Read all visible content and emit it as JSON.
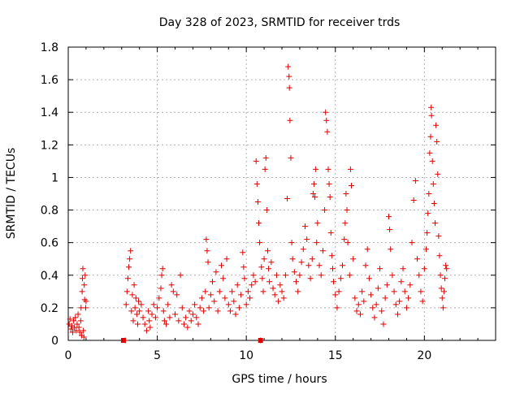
{
  "chart_data": {
    "type": "scatter",
    "title": "Day 328 of 2023, SRMTID for receiver trds",
    "xlabel": "GPS time / hours",
    "ylabel": "SRMTID / TECUs",
    "xlim": [
      0,
      24
    ],
    "ylim": [
      0,
      1.8
    ],
    "xticks": [
      0,
      5,
      10,
      15,
      20
    ],
    "yticks": [
      0,
      0.2,
      0.4,
      0.6,
      0.8,
      1,
      1.2,
      1.4,
      1.6,
      1.8
    ],
    "ytick_labels": [
      "0",
      "0.2",
      "0.4",
      "0.6",
      "0.8",
      "1",
      "1.2",
      "1.4",
      "1.6",
      "1.8"
    ],
    "grid": true,
    "marker": "plus",
    "color": "#e00000",
    "series": [
      {
        "name": "SRMTID",
        "points": [
          [
            0.05,
            0.1
          ],
          [
            0.1,
            0.13
          ],
          [
            0.15,
            0.07
          ],
          [
            0.2,
            0.09
          ],
          [
            0.25,
            0.05
          ],
          [
            0.3,
            0.12
          ],
          [
            0.35,
            0.08
          ],
          [
            0.4,
            0.14
          ],
          [
            0.45,
            0.06
          ],
          [
            0.5,
            0.1
          ],
          [
            0.55,
            0.16
          ],
          [
            0.6,
            0.08
          ],
          [
            0.65,
            0.05
          ],
          [
            0.7,
            0.12
          ],
          [
            0.72,
            0.2
          ],
          [
            0.75,
            0.03
          ],
          [
            0.78,
            0.3
          ],
          [
            0.8,
            0.38
          ],
          [
            0.82,
            0.44
          ],
          [
            0.85,
            0.06
          ],
          [
            0.88,
            0.02
          ],
          [
            0.9,
            0.34
          ],
          [
            0.92,
            0.25
          ],
          [
            0.95,
            0.4
          ],
          [
            0.98,
            0.2
          ],
          [
            1.0,
            0.24
          ],
          [
            3.2,
            0.0
          ],
          [
            3.25,
            0.22
          ],
          [
            3.3,
            0.3
          ],
          [
            3.35,
            0.38
          ],
          [
            3.4,
            0.45
          ],
          [
            3.45,
            0.5
          ],
          [
            3.5,
            0.55
          ],
          [
            3.55,
            0.18
          ],
          [
            3.6,
            0.28
          ],
          [
            3.65,
            0.12
          ],
          [
            3.7,
            0.34
          ],
          [
            3.75,
            0.2
          ],
          [
            3.8,
            0.26
          ],
          [
            3.85,
            0.16
          ],
          [
            3.9,
            0.1
          ],
          [
            3.95,
            0.24
          ],
          [
            4.0,
            0.18
          ],
          [
            4.1,
            0.22
          ],
          [
            4.2,
            0.14
          ],
          [
            4.3,
            0.1
          ],
          [
            4.4,
            0.06
          ],
          [
            4.5,
            0.18
          ],
          [
            4.55,
            0.12
          ],
          [
            4.6,
            0.08
          ],
          [
            4.7,
            0.16
          ],
          [
            4.8,
            0.22
          ],
          [
            4.9,
            0.14
          ],
          [
            5.0,
            0.2
          ],
          [
            5.1,
            0.26
          ],
          [
            5.2,
            0.32
          ],
          [
            5.25,
            0.4
          ],
          [
            5.3,
            0.44
          ],
          [
            5.35,
            0.18
          ],
          [
            5.4,
            0.12
          ],
          [
            5.5,
            0.1
          ],
          [
            5.6,
            0.22
          ],
          [
            5.7,
            0.14
          ],
          [
            5.8,
            0.34
          ],
          [
            5.9,
            0.3
          ],
          [
            6.0,
            0.16
          ],
          [
            6.1,
            0.28
          ],
          [
            6.2,
            0.12
          ],
          [
            6.3,
            0.4
          ],
          [
            6.4,
            0.2
          ],
          [
            6.5,
            0.1
          ],
          [
            6.6,
            0.14
          ],
          [
            6.7,
            0.08
          ],
          [
            6.8,
            0.18
          ],
          [
            6.9,
            0.12
          ],
          [
            7.0,
            0.16
          ],
          [
            7.1,
            0.22
          ],
          [
            7.2,
            0.14
          ],
          [
            7.3,
            0.1
          ],
          [
            7.4,
            0.2
          ],
          [
            7.5,
            0.26
          ],
          [
            7.6,
            0.18
          ],
          [
            7.7,
            0.3
          ],
          [
            7.75,
            0.62
          ],
          [
            7.8,
            0.55
          ],
          [
            7.85,
            0.48
          ],
          [
            7.9,
            0.2
          ],
          [
            8.0,
            0.28
          ],
          [
            8.1,
            0.36
          ],
          [
            8.2,
            0.24
          ],
          [
            8.3,
            0.42
          ],
          [
            8.4,
            0.18
          ],
          [
            8.5,
            0.3
          ],
          [
            8.6,
            0.46
          ],
          [
            8.7,
            0.38
          ],
          [
            8.8,
            0.26
          ],
          [
            8.9,
            0.5
          ],
          [
            9.0,
            0.22
          ],
          [
            9.1,
            0.18
          ],
          [
            9.2,
            0.3
          ],
          [
            9.3,
            0.24
          ],
          [
            9.4,
            0.16
          ],
          [
            9.5,
            0.34
          ],
          [
            9.6,
            0.2
          ],
          [
            9.7,
            0.28
          ],
          [
            9.8,
            0.54
          ],
          [
            9.85,
            0.45
          ],
          [
            9.9,
            0.38
          ],
          [
            10.0,
            0.22
          ],
          [
            10.1,
            0.3
          ],
          [
            10.2,
            0.26
          ],
          [
            10.3,
            0.34
          ],
          [
            10.4,
            0.4
          ],
          [
            10.5,
            0.36
          ],
          [
            10.55,
            1.1
          ],
          [
            10.6,
            0.96
          ],
          [
            10.65,
            0.85
          ],
          [
            10.7,
            0.72
          ],
          [
            10.75,
            0.6
          ],
          [
            10.8,
            0.0
          ],
          [
            10.85,
            0.45
          ],
          [
            10.9,
            0.38
          ],
          [
            10.95,
            0.3
          ],
          [
            11.0,
            0.5
          ],
          [
            11.05,
            1.05
          ],
          [
            11.1,
            1.12
          ],
          [
            11.15,
            0.8
          ],
          [
            11.2,
            0.55
          ],
          [
            11.25,
            0.44
          ],
          [
            11.3,
            0.36
          ],
          [
            11.4,
            0.48
          ],
          [
            11.5,
            0.32
          ],
          [
            11.6,
            0.28
          ],
          [
            11.7,
            0.4
          ],
          [
            11.8,
            0.24
          ],
          [
            11.9,
            0.34
          ],
          [
            12.0,
            0.3
          ],
          [
            12.1,
            0.26
          ],
          [
            12.2,
            0.4
          ],
          [
            12.3,
            0.87
          ],
          [
            12.35,
            1.68
          ],
          [
            12.4,
            1.62
          ],
          [
            12.42,
            1.55
          ],
          [
            12.45,
            1.35
          ],
          [
            12.5,
            1.12
          ],
          [
            12.55,
            0.6
          ],
          [
            12.6,
            0.5
          ],
          [
            12.7,
            0.42
          ],
          [
            12.8,
            0.36
          ],
          [
            12.9,
            0.3
          ],
          [
            13.0,
            0.4
          ],
          [
            13.1,
            0.48
          ],
          [
            13.2,
            0.56
          ],
          [
            13.3,
            0.7
          ],
          [
            13.4,
            0.62
          ],
          [
            13.5,
            0.46
          ],
          [
            13.6,
            0.38
          ],
          [
            13.7,
            0.5
          ],
          [
            13.75,
            0.9
          ],
          [
            13.8,
            0.96
          ],
          [
            13.85,
            0.88
          ],
          [
            13.9,
            1.05
          ],
          [
            13.95,
            0.6
          ],
          [
            14.0,
            0.72
          ],
          [
            14.1,
            0.46
          ],
          [
            14.2,
            0.4
          ],
          [
            14.3,
            0.55
          ],
          [
            14.4,
            0.8
          ],
          [
            14.45,
            1.4
          ],
          [
            14.5,
            1.35
          ],
          [
            14.55,
            1.28
          ],
          [
            14.6,
            1.05
          ],
          [
            14.65,
            0.96
          ],
          [
            14.7,
            0.88
          ],
          [
            14.75,
            0.66
          ],
          [
            14.8,
            0.52
          ],
          [
            14.85,
            0.44
          ],
          [
            14.9,
            0.36
          ],
          [
            15.0,
            0.28
          ],
          [
            15.1,
            0.2
          ],
          [
            15.2,
            0.3
          ],
          [
            15.3,
            0.38
          ],
          [
            15.4,
            0.46
          ],
          [
            15.5,
            0.62
          ],
          [
            15.55,
            0.72
          ],
          [
            15.6,
            0.9
          ],
          [
            15.65,
            0.8
          ],
          [
            15.7,
            0.6
          ],
          [
            15.8,
            0.4
          ],
          [
            15.85,
            1.05
          ],
          [
            15.9,
            0.95
          ],
          [
            16.0,
            0.5
          ],
          [
            16.1,
            0.26
          ],
          [
            16.2,
            0.18
          ],
          [
            16.3,
            0.22
          ],
          [
            16.4,
            0.16
          ],
          [
            16.5,
            0.3
          ],
          [
            16.6,
            0.24
          ],
          [
            16.7,
            0.46
          ],
          [
            16.8,
            0.56
          ],
          [
            16.9,
            0.38
          ],
          [
            17.0,
            0.28
          ],
          [
            17.1,
            0.2
          ],
          [
            17.2,
            0.14
          ],
          [
            17.3,
            0.22
          ],
          [
            17.4,
            0.32
          ],
          [
            17.5,
            0.44
          ],
          [
            17.6,
            0.18
          ],
          [
            17.7,
            0.1
          ],
          [
            17.8,
            0.26
          ],
          [
            17.9,
            0.34
          ],
          [
            18.0,
            0.76
          ],
          [
            18.05,
            0.68
          ],
          [
            18.1,
            0.56
          ],
          [
            18.2,
            0.4
          ],
          [
            18.3,
            0.3
          ],
          [
            18.4,
            0.22
          ],
          [
            18.5,
            0.16
          ],
          [
            18.6,
            0.24
          ],
          [
            18.7,
            0.36
          ],
          [
            18.8,
            0.44
          ],
          [
            18.9,
            0.3
          ],
          [
            19.0,
            0.2
          ],
          [
            19.1,
            0.26
          ],
          [
            19.2,
            0.34
          ],
          [
            19.3,
            0.6
          ],
          [
            19.4,
            0.86
          ],
          [
            19.5,
            0.98
          ],
          [
            19.6,
            0.5
          ],
          [
            19.7,
            0.4
          ],
          [
            19.8,
            0.3
          ],
          [
            19.9,
            0.24
          ],
          [
            20.0,
            0.44
          ],
          [
            20.1,
            0.56
          ],
          [
            20.15,
            0.66
          ],
          [
            20.2,
            0.78
          ],
          [
            20.25,
            0.9
          ],
          [
            20.3,
            1.15
          ],
          [
            20.35,
            1.25
          ],
          [
            20.38,
            1.43
          ],
          [
            20.4,
            1.38
          ],
          [
            20.45,
            1.1
          ],
          [
            20.5,
            0.96
          ],
          [
            20.55,
            0.84
          ],
          [
            20.6,
            0.72
          ],
          [
            20.65,
            1.32
          ],
          [
            20.7,
            1.22
          ],
          [
            20.75,
            1.02
          ],
          [
            20.8,
            0.64
          ],
          [
            20.85,
            0.52
          ],
          [
            20.9,
            0.4
          ],
          [
            20.95,
            0.32
          ],
          [
            21.0,
            0.26
          ],
          [
            21.05,
            0.2
          ],
          [
            21.1,
            0.3
          ],
          [
            21.15,
            0.38
          ],
          [
            21.2,
            0.46
          ],
          [
            21.25,
            0.44
          ]
        ]
      }
    ],
    "gap_markers_x": [
      3.1,
      10.8
    ]
  }
}
